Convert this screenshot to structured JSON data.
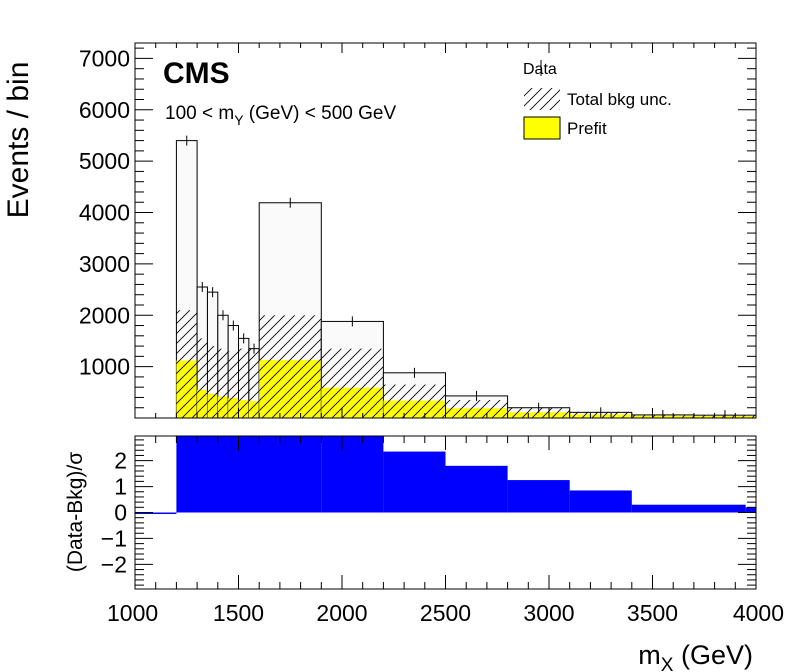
{
  "chart_data": [
    {
      "type": "bar",
      "panel": "main",
      "experiment_label": "CMS",
      "selection_label": {
        "prefix": "100 < m",
        "subscript": "Y",
        "suffix": " (GeV) < 500 GeV"
      },
      "ylabel": "Events / bin",
      "ylim": [
        0,
        7300
      ],
      "yticks": [
        1000,
        2000,
        3000,
        4000,
        5000,
        6000,
        7000
      ],
      "xlim": [
        1000,
        4000
      ],
      "legend": {
        "placement": "top-right",
        "entries": [
          {
            "label": "Data",
            "style": "points"
          },
          {
            "label": "Total bkg unc.",
            "style": "hatched"
          },
          {
            "label": "Prefit",
            "style": "filled"
          }
        ]
      },
      "bin_edges": [
        1200,
        1300,
        1350,
        1400,
        1450,
        1500,
        1550,
        1600,
        1900,
        2200,
        2500,
        2800,
        3100,
        3400,
        3700,
        4000
      ],
      "series": [
        {
          "name": "Data",
          "values": [
            5400,
            2550,
            2450,
            2000,
            1800,
            1550,
            1350,
            4190,
            1880,
            880,
            430,
            200,
            110,
            60,
            55
          ]
        },
        {
          "name": "Total bkg unc.",
          "values": [
            2100,
            1550,
            1400,
            1350,
            1300,
            1350,
            1350,
            2000,
            1350,
            650,
            350,
            200,
            120,
            60,
            55
          ]
        },
        {
          "name": "Prefit",
          "values": [
            1120,
            550,
            470,
            420,
            390,
            350,
            330,
            1130,
            590,
            340,
            190,
            110,
            70,
            45,
            40
          ]
        }
      ],
      "colors": {
        "prefit": "#ffff00",
        "envelope": "#fafafa"
      }
    },
    {
      "type": "bar",
      "panel": "ratio",
      "ylabel": "(Data-Bkg)/σ",
      "ylim": [
        -2.95,
        2.95
      ],
      "yticks": [
        -2,
        -1,
        0,
        1,
        2
      ],
      "xlabel": {
        "prefix": "m",
        "subscript": "X",
        "suffix": " (GeV)"
      },
      "xlim": [
        1000,
        4000
      ],
      "xticks": [
        1000,
        1500,
        2000,
        2500,
        3000,
        3500,
        4000
      ],
      "bin_edges": [
        1000,
        1200,
        1900,
        2200,
        2500,
        2800,
        3100,
        3400,
        3950,
        4000
      ],
      "values": [
        -0.05,
        3.0,
        3.0,
        2.35,
        1.8,
        1.25,
        0.85,
        0.3,
        0.2
      ],
      "colors": {
        "fill": "#0000ff"
      }
    }
  ]
}
